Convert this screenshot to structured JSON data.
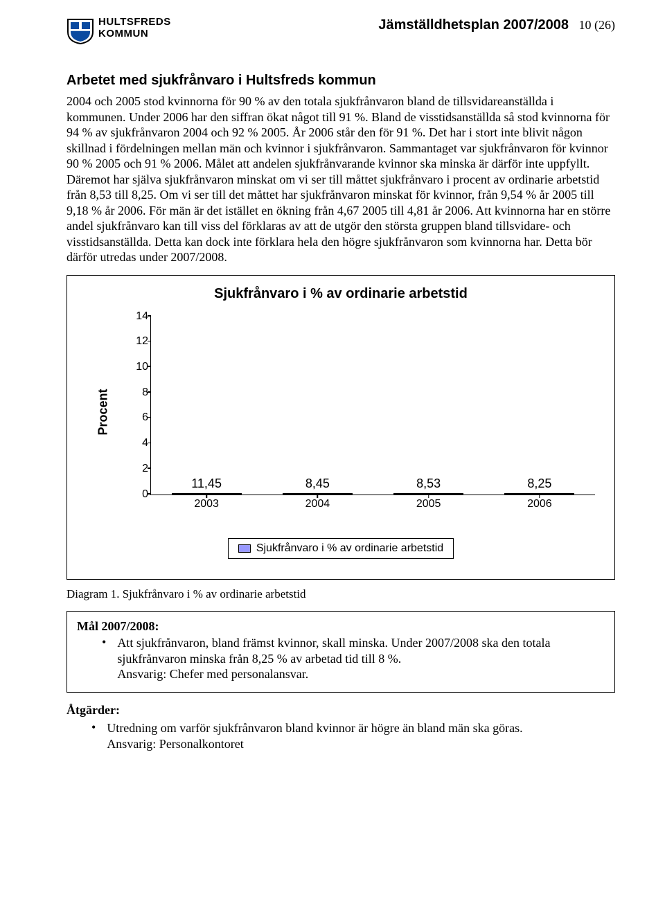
{
  "header": {
    "org_line1": "HULTSFREDS",
    "org_line2": "KOMMUN",
    "doc_title": "Jämställdhetsplan 2007/2008",
    "page_num": "10 (26)"
  },
  "section_heading": "Arbetet med sjukfrånvaro i Hultsfreds kommun",
  "body_text": "2004 och 2005 stod kvinnorna för 90 % av den totala sjukfrånvaron bland de tillsvidareanställda i kommunen. Under 2006 har den siffran ökat något till 91 %. Bland de visstidsanställda så stod kvinnorna för 94 % av sjukfrånvaron 2004 och 92 % 2005. År 2006 står den för 91 %. Det har i stort inte blivit någon skillnad i fördelningen mellan män och kvinnor i sjukfrånvaron. Sammantaget var sjukfrånvaron för kvinnor 90 % 2005 och 91 % 2006. Målet att andelen sjukfrånvarande kvinnor ska minska är därför inte uppfyllt. Däremot har själva sjukfrånvaron minskat om vi ser till måttet sjukfrånvaro i procent av ordinarie arbetstid från 8,53 till 8,25. Om vi ser till det måttet har sjukfrånvaron minskat för kvinnor, från 9,54 % år 2005 till 9,18 % år 2006. För män är det istället en ökning från 4,67 2005 till 4,81 år 2006. Att kvinnorna har en större andel sjukfrånvaro kan till viss del förklaras av att de utgör den största gruppen bland tillsvidare- och visstidsanställda. Detta kan dock inte förklara hela den högre sjukfrånvaron som kvinnorna har. Detta bör därför utredas under 2007/2008.",
  "chart": {
    "type": "bar",
    "title": "Sjukfrånvaro i % av ordinarie arbetstid",
    "categories": [
      "2003",
      "2004",
      "2005",
      "2006"
    ],
    "value_labels": [
      "11,45",
      "8,45",
      "8,53",
      "8,25"
    ],
    "values": [
      11.45,
      8.45,
      8.53,
      8.25
    ],
    "bar_color": "#9999ff",
    "bar_border": "#000000",
    "ymax": 14,
    "ytick_step": 2,
    "yticks": [
      "0",
      "2",
      "4",
      "6",
      "8",
      "10",
      "12",
      "14"
    ],
    "ylabel": "Procent",
    "legend_label": "Sjukfrånvaro i % av ordinarie arbetstid",
    "background_color": "#ffffff",
    "font_family": "Arial",
    "title_fontsize": 20,
    "label_fontsize": 16
  },
  "caption": "Diagram 1. Sjukfrånvaro i % av ordinarie arbetstid",
  "goal": {
    "heading": "Mål 2007/2008:",
    "item_text": "Att sjukfrånvaron, bland främst kvinnor, skall minska. Under 2007/2008 ska den totala sjukfrånvaron minska från 8,25 % av arbetad tid till 8 %.",
    "item_resp": "Ansvarig: Chefer med personalansvar."
  },
  "actions": {
    "heading": "Åtgärder:",
    "item_text": "Utredning om varför sjukfrånvaron bland kvinnor är högre än bland män ska göras.",
    "item_resp": "Ansvarig: Personalkontoret"
  }
}
